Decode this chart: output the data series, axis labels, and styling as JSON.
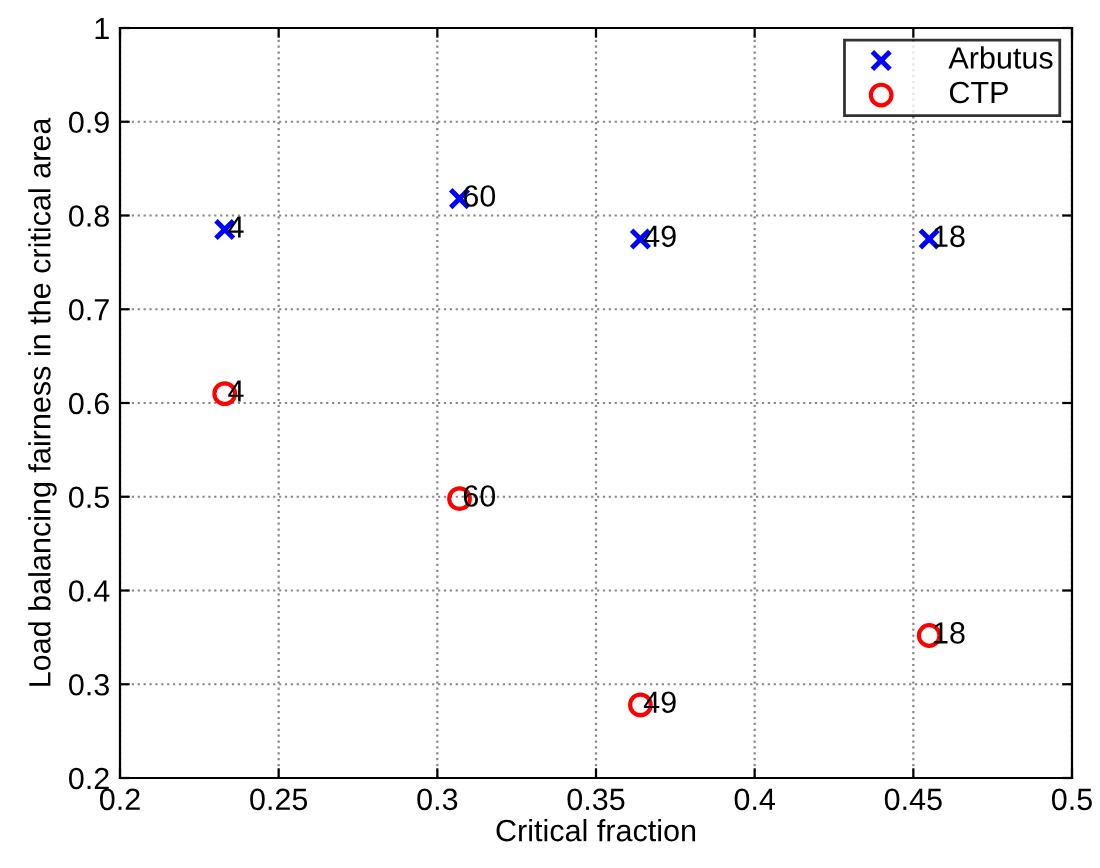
{
  "chart_data": {
    "type": "scatter",
    "xlabel": "Critical fraction",
    "ylabel": "Load balancing fairness in the critical area",
    "xlim": [
      0.2,
      0.5
    ],
    "xticks": [
      0.2,
      0.25,
      0.3,
      0.35,
      0.4,
      0.45,
      0.5
    ],
    "ylim": [
      0.2,
      1
    ],
    "yticks": [
      0.2,
      0.3,
      0.4,
      0.5,
      0.6,
      0.7,
      0.8,
      0.9,
      1
    ],
    "grid": true,
    "legend": "top right",
    "series": [
      {
        "name": "Arbutus",
        "color": "#0000ff",
        "marker": "cross",
        "x": [
          0.233,
          0.307,
          0.364,
          0.455
        ],
        "values": [
          0.785,
          0.818,
          0.775,
          0.775
        ]
      },
      {
        "name": "CTP",
        "color": "#ff0000",
        "marker": "circle",
        "x": [
          0.233,
          0.307,
          0.364,
          0.455
        ],
        "values": [
          0.61,
          0.498,
          0.278,
          0.352
        ]
      }
    ],
    "annotations": [
      {
        "text": "4",
        "x": 0.233,
        "y": 0.785
      },
      {
        "text": "60",
        "x": 0.307,
        "y": 0.818
      },
      {
        "text": "49",
        "x": 0.364,
        "y": 0.775
      },
      {
        "text": "18",
        "x": 0.455,
        "y": 0.775
      },
      {
        "text": "4",
        "x": 0.233,
        "y": 0.61
      },
      {
        "text": "60",
        "x": 0.307,
        "y": 0.498
      },
      {
        "text": "49",
        "x": 0.364,
        "y": 0.278
      },
      {
        "text": "18",
        "x": 0.455,
        "y": 0.352
      }
    ]
  }
}
